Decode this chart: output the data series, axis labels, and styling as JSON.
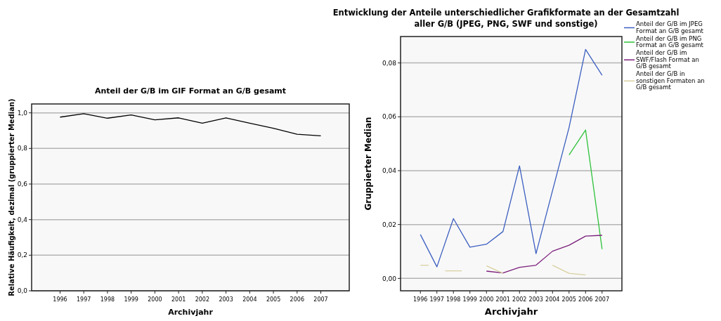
{
  "chart_data": [
    {
      "type": "line",
      "title": "Anteil der G/B im GIF Format an G/B gesamt",
      "xlabel": "Archivjahr",
      "ylabel": "Relative Häufigkeit, dezimal (gruppierter Median)",
      "categories": [
        "1996",
        "1997",
        "1998",
        "1999",
        "2000",
        "2001",
        "2002",
        "2003",
        "2004",
        "2005",
        "2006",
        "2007"
      ],
      "ylim": [
        0,
        1.05
      ],
      "yticks": [
        {
          "value": 0,
          "label": "0,0"
        },
        {
          "value": 0.2,
          "label": "0,2"
        },
        {
          "value": 0.4,
          "label": "0,4"
        },
        {
          "value": 0.6,
          "label": "0,6"
        },
        {
          "value": 0.8,
          "label": "0,8"
        },
        {
          "value": 1,
          "label": "1,0"
        }
      ],
      "grid": "y",
      "series": [
        {
          "color": "#000000",
          "values": [
            0.976,
            0.995,
            0.97,
            0.988,
            0.961,
            0.972,
            0.942,
            0.972,
            0.942,
            0.913,
            0.88,
            0.871
          ]
        }
      ]
    },
    {
      "type": "line",
      "title": "Entwicklung der Anteile unterschiedlicher Grafikformate an der Gesamtzahl aller G/B (JPEG, PNG, SWF und sonstige)",
      "xlabel": "Archivjahr",
      "ylabel": "Gruppierter Median",
      "categories": [
        "1996",
        "1997",
        "1998",
        "1999",
        "2000",
        "2001",
        "2002",
        "2003",
        "2004",
        "2005",
        "2006",
        "2007"
      ],
      "ylim": [
        -0.0046,
        0.0898
      ],
      "yticks": [
        {
          "value": 0,
          "label": "0,00"
        },
        {
          "value": 0.02,
          "label": "0,02"
        },
        {
          "value": 0.04,
          "label": "0,04"
        },
        {
          "value": 0.06,
          "label": "0,06"
        },
        {
          "value": 0.08,
          "label": "0,08"
        }
      ],
      "grid": "y",
      "legend": "top right",
      "series": [
        {
          "name": "Anteil der G/B im JPEG Format an G/B gesamt",
          "color": "#3c5fc0",
          "values": [
            0.0163,
            0.0043,
            0.0222,
            0.0116,
            0.0127,
            0.0174,
            0.0418,
            0.0092,
            0.0326,
            0.056,
            0.085,
            0.0754
          ]
        },
        {
          "name": "Anteil der G/B im PNG Format an G/B gesamt",
          "color": "#2ec23a",
          "values": [
            null,
            null,
            null,
            null,
            null,
            null,
            null,
            null,
            null,
            0.0458,
            0.0551,
            0.0109
          ]
        },
        {
          "name": "Anteil der G/B im SWF/Flash Format an G/B gesamt",
          "color": "#7b1f7b",
          "values": [
            null,
            null,
            null,
            null,
            0.0027,
            0.002,
            0.0041,
            0.0049,
            0.0101,
            0.0123,
            0.0157,
            0.016
          ]
        },
        {
          "name": "Anteil der G/B in sonstigen Formaten an G/B gesamt",
          "color": "#d8d0a0",
          "values": [
            0.0049,
            null,
            0.0028,
            null,
            0.0047,
            0.0019,
            null,
            null,
            0.0049,
            0.0019,
            0.0013,
            null
          ]
        }
      ]
    }
  ]
}
